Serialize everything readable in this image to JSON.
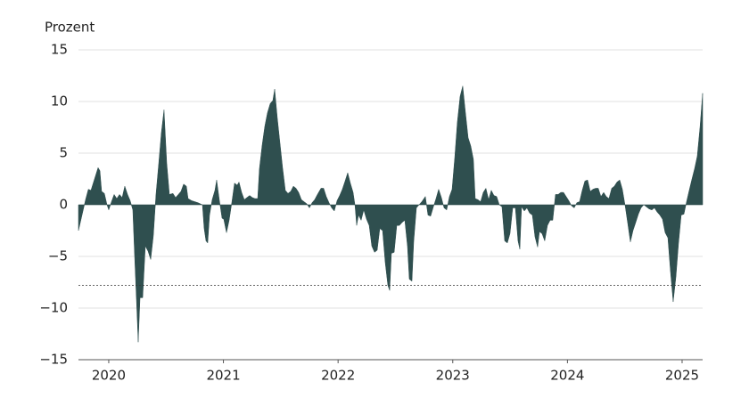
{
  "chart_data": {
    "type": "area",
    "ylabel": "Prozent",
    "x": [
      2019.736,
      2019.767,
      2019.798,
      2019.822,
      2019.845,
      2019.876,
      2019.907,
      2019.923,
      2019.938,
      2019.962,
      2019.985,
      2020.0,
      2020.024,
      2020.047,
      2020.07,
      2020.094,
      2020.117,
      2020.14,
      2020.164,
      2020.187,
      2020.21,
      2020.226,
      2020.241,
      2020.257,
      2020.273,
      2020.296,
      2020.319,
      2020.343,
      2020.366,
      2020.389,
      2020.412,
      2020.436,
      2020.459,
      2020.482,
      2020.506,
      2020.529,
      2020.56,
      2020.583,
      2020.607,
      2020.63,
      2020.653,
      2020.677,
      2020.692,
      2020.723,
      2020.778,
      2020.817,
      2020.832,
      2020.848,
      2020.863,
      2020.879,
      2020.902,
      2020.926,
      2020.941,
      2020.964,
      2020.988,
      2021.003,
      2021.027,
      2021.05,
      2021.073,
      2021.097,
      2021.12,
      2021.136,
      2021.159,
      2021.182,
      2021.205,
      2021.229,
      2021.252,
      2021.275,
      2021.299,
      2021.314,
      2021.338,
      2021.361,
      2021.384,
      2021.408,
      2021.431,
      2021.447,
      2021.47,
      2021.493,
      2021.516,
      2021.54,
      2021.563,
      2021.587,
      2021.61,
      2021.633,
      2021.656,
      2021.68,
      2021.703,
      2021.727,
      2021.75,
      2021.773,
      2021.796,
      2021.82,
      2021.851,
      2021.874,
      2021.897,
      2021.921,
      2021.944,
      2021.967,
      2021.991,
      2022.014,
      2022.037,
      2022.061,
      2022.084,
      2022.107,
      2022.131,
      2022.147,
      2022.162,
      2022.178,
      2022.201,
      2022.224,
      2022.248,
      2022.271,
      2022.294,
      2022.318,
      2022.341,
      2022.364,
      2022.388,
      2022.411,
      2022.434,
      2022.45,
      2022.465,
      2022.489,
      2022.512,
      2022.535,
      2022.559,
      2022.582,
      2022.605,
      2022.621,
      2022.644,
      2022.66,
      2022.683,
      2022.706,
      2022.73,
      2022.761,
      2022.784,
      2022.807,
      2022.831,
      2022.854,
      2022.877,
      2022.901,
      2022.924,
      2022.947,
      2022.971,
      2022.994,
      2023.017,
      2023.04,
      2023.064,
      2023.087,
      2023.11,
      2023.134,
      2023.157,
      2023.18,
      2023.196,
      2023.219,
      2023.243,
      2023.266,
      2023.289,
      2023.313,
      2023.336,
      2023.359,
      2023.383,
      2023.406,
      2023.429,
      2023.453,
      2023.476,
      2023.499,
      2023.523,
      2023.546,
      2023.569,
      2023.585,
      2023.6,
      2023.624,
      2023.647,
      2023.67,
      2023.694,
      2023.717,
      2023.74,
      2023.756,
      2023.779,
      2023.802,
      2023.826,
      2023.849,
      2023.872,
      2023.896,
      2023.919,
      2023.942,
      2023.966,
      2023.989,
      2024.012,
      2024.036,
      2024.059,
      2024.082,
      2024.106,
      2024.129,
      2024.152,
      2024.176,
      2024.199,
      2024.222,
      2024.246,
      2024.269,
      2024.292,
      2024.316,
      2024.339,
      2024.362,
      2024.386,
      2024.409,
      2024.432,
      2024.456,
      2024.479,
      2024.502,
      2024.526,
      2024.549,
      2024.572,
      2024.596,
      2024.619,
      2024.642,
      2024.666,
      2024.689,
      2024.712,
      2024.736,
      2024.759,
      2024.782,
      2024.806,
      2024.829,
      2024.852,
      2024.876,
      2024.899,
      2024.922,
      2024.946,
      2024.969,
      2024.992,
      2025.016,
      2025.039,
      2025.062,
      2025.086,
      2025.109,
      2025.132,
      2025.156,
      2025.179
    ],
    "values": [
      -2.5,
      -1,
      0.5,
      1.5,
      1.4,
      2.5,
      3.6,
      3.3,
      1.3,
      1.1,
      0,
      -0.5,
      0.3,
      1,
      0.6,
      1,
      0.7,
      1.8,
      1,
      0.4,
      -0.5,
      -5,
      -9,
      -13.3,
      -9,
      -9,
      -4,
      -4.5,
      -5.3,
      -3,
      1,
      4,
      7,
      9.2,
      4,
      1,
      1.1,
      0.7,
      1,
      1.3,
      2,
      1.8,
      0.6,
      0.4,
      0.2,
      0,
      -2.3,
      -3.5,
      -3.7,
      -1,
      0.5,
      1.4,
      2.4,
      0.5,
      -1.3,
      -1.4,
      -2.7,
      -1.5,
      0.2,
      2.1,
      1.9,
      2.2,
      1.2,
      0.5,
      0.7,
      0.9,
      0.7,
      0.6,
      0.6,
      3.5,
      5.8,
      7.6,
      8.9,
      9.8,
      10.1,
      11.2,
      8.4,
      6,
      3.6,
      1.4,
      1.1,
      1.3,
      1.8,
      1.6,
      1.2,
      0.5,
      0.3,
      0.1,
      -0.3,
      0.2,
      0.5,
      1,
      1.6,
      1.6,
      0.8,
      0.2,
      -0.3,
      -0.6,
      0.4,
      0.9,
      1.5,
      2.3,
      3.1,
      2.1,
      1.2,
      0,
      -2,
      -1,
      -1.5,
      -0.5,
      -1.4,
      -2,
      -4,
      -4.6,
      -4.4,
      -2.3,
      -2.5,
      -5.6,
      -7.8,
      -8.3,
      -4.7,
      -4.6,
      -2,
      -2,
      -1.7,
      -1.5,
      -4,
      -7.2,
      -7.4,
      -3.5,
      -0.3,
      0,
      0.3,
      0.8,
      -1,
      -1.1,
      -0.2,
      0.6,
      1.5,
      0.7,
      -0.3,
      -0.5,
      0.8,
      1.5,
      4.5,
      8,
      10.5,
      11.5,
      9,
      6.5,
      5.7,
      4.4,
      0.6,
      0.5,
      0.3,
      1.2,
      1.6,
      0.5,
      1.4,
      0.9,
      0.8,
      0,
      -0.2,
      -3.5,
      -3.7,
      -2.8,
      -0.3,
      -0.3,
      -3.5,
      -4.3,
      -0.2,
      -0.6,
      -0.3,
      -0.8,
      -1,
      -3.1,
      -4.1,
      -2.6,
      -2.8,
      -3.5,
      -2,
      -1.5,
      -1.5,
      1,
      1,
      1.2,
      1.2,
      0.8,
      0.4,
      -0.1,
      -0.3,
      0.2,
      0.3,
      1.4,
      2.3,
      2.4,
      1.3,
      1.5,
      1.6,
      1.6,
      0.8,
      1.2,
      0.8,
      0.6,
      1.6,
      1.8,
      2.2,
      2.4,
      1.5,
      0,
      -1.8,
      -3.6,
      -2.5,
      -1.7,
      -0.9,
      -0.3,
      0,
      -0.2,
      -0.4,
      -0.5,
      -0.3,
      -0.7,
      -1,
      -1.4,
      -2.7,
      -3.2,
      -6.5,
      -9.4,
      -7,
      -3.7,
      -1,
      -0.9,
      0.3,
      1.4,
      2.5,
      3.5,
      4.7,
      7.5,
      10.8
    ],
    "color": "#2f4f4f",
    "xlim": [
      2019.736,
      2025.179
    ],
    "xticks": [
      2020,
      2021,
      2022,
      2023,
      2024,
      2025
    ],
    "ylim": [
      -15,
      15
    ],
    "yticks": [
      {
        "value": -15,
        "label": "−15"
      },
      {
        "value": -10,
        "label": "−10"
      },
      {
        "value": -5,
        "label": "−5"
      },
      0,
      5,
      10,
      15
    ],
    "grid": true,
    "hline": -7.8
  }
}
